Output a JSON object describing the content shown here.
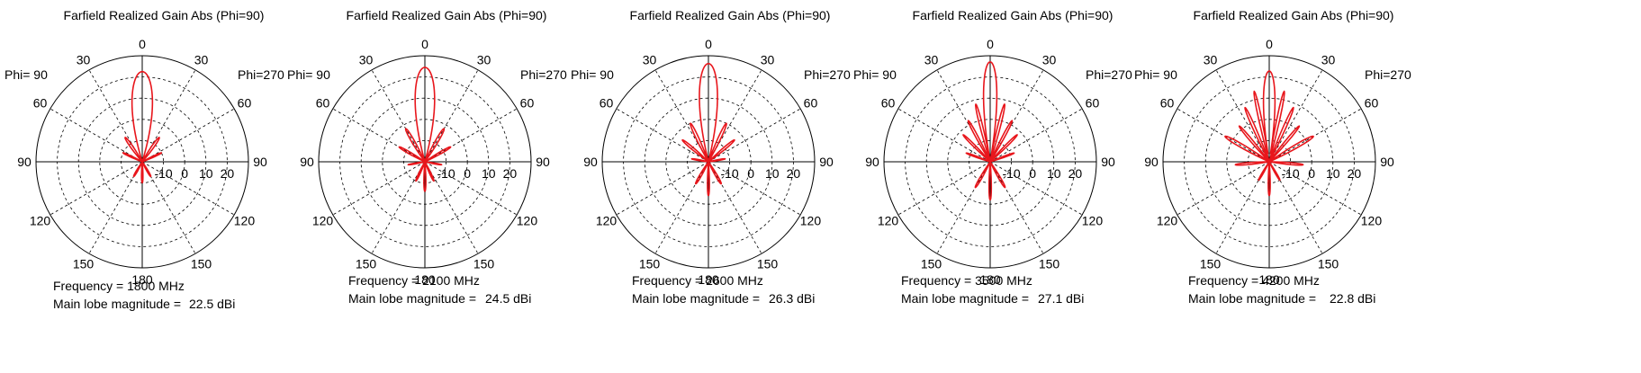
{
  "chart_data": [
    {
      "type": "polar",
      "title": "Farfield Realized Gain Abs (Phi=90)",
      "phi_left": "Phi= 90",
      "phi_right": "Phi=270",
      "angle_labels": [
        "0",
        "30",
        "60",
        "90",
        "120",
        "150",
        "180",
        "150",
        "120",
        "90",
        "60",
        "30"
      ],
      "radial_ticks": [
        "-10",
        "0",
        "10",
        "20"
      ],
      "radial_range": [
        -20,
        30
      ],
      "frequency_label": "Frequency = 1800 MHz",
      "main_lobe_label": "Main lobe magnitude =",
      "main_lobe_value": "22.5 dBi",
      "main_lobe_dbi": 22.5,
      "series_color": "#e8161c",
      "pattern": {
        "beamwidth": 9,
        "sidelobes": [
          [
            35,
            -6,
            12
          ],
          [
            -35,
            -6,
            12
          ],
          [
            65,
            -10,
            10
          ],
          [
            -65,
            -10,
            10
          ],
          [
            150,
            -12,
            15
          ],
          [
            -150,
            -12,
            15
          ],
          [
            180,
            -10,
            12
          ]
        ]
      }
    },
    {
      "type": "polar",
      "title": "Farfield Realized Gain Abs (Phi=90)",
      "phi_left": "Phi= 90",
      "phi_right": "Phi=270",
      "angle_labels": [
        "0",
        "30",
        "60",
        "90",
        "120",
        "150",
        "180",
        "150",
        "120",
        "90",
        "60",
        "30"
      ],
      "radial_ticks": [
        "-10",
        "0",
        "10",
        "20"
      ],
      "radial_range": [
        -20,
        30
      ],
      "frequency_label": "Frequency = 2100 MHz",
      "main_lobe_label": "Main lobe magnitude =",
      "main_lobe_value": "24.5 dBi",
      "main_lobe_dbi": 24.5,
      "series_color": "#e8161c",
      "pattern": {
        "beamwidth": 8,
        "sidelobes": [
          [
            30,
            -2,
            10
          ],
          [
            -30,
            -2,
            10
          ],
          [
            60,
            -6,
            10
          ],
          [
            -60,
            -6,
            10
          ],
          [
            100,
            -12,
            10
          ],
          [
            -100,
            -12,
            10
          ],
          [
            155,
            -10,
            12
          ],
          [
            -155,
            -10,
            12
          ],
          [
            180,
            -6,
            10
          ]
        ]
      }
    },
    {
      "type": "polar",
      "title": "Farfield Realized Gain Abs (Phi=90)",
      "phi_left": "Phi= 90",
      "phi_right": "Phi=270",
      "angle_labels": [
        "0",
        "30",
        "60",
        "90",
        "120",
        "150",
        "180",
        "150",
        "120",
        "90",
        "60",
        "30"
      ],
      "radial_ticks": [
        "-10",
        "0",
        "10",
        "20"
      ],
      "radial_range": [
        -20,
        30
      ],
      "frequency_label": "Frequency = 2600 MHz",
      "main_lobe_label": "Main lobe magnitude =",
      "main_lobe_value": "26.3 dBi",
      "main_lobe_dbi": 26.3,
      "series_color": "#e8161c",
      "pattern": {
        "beamwidth": 7,
        "sidelobes": [
          [
            25,
            0,
            8
          ],
          [
            -25,
            0,
            8
          ],
          [
            50,
            -4,
            9
          ],
          [
            -50,
            -4,
            9
          ],
          [
            80,
            -12,
            10
          ],
          [
            -80,
            -12,
            10
          ],
          [
            150,
            -8,
            12
          ],
          [
            -150,
            -8,
            12
          ],
          [
            180,
            -4,
            8
          ]
        ]
      }
    },
    {
      "type": "polar",
      "title": "Farfield Realized Gain Abs (Phi=90)",
      "phi_left": "Phi= 90",
      "phi_right": "Phi=270",
      "angle_labels": [
        "0",
        "30",
        "60",
        "90",
        "120",
        "150",
        "180",
        "150",
        "120",
        "90",
        "60",
        "30"
      ],
      "radial_ticks": [
        "-10",
        "0",
        "10",
        "20"
      ],
      "radial_range": [
        -20,
        30
      ],
      "frequency_label": "Frequency = 3500 MHz",
      "main_lobe_label": "Main lobe magnitude =",
      "main_lobe_value": "27.1 dBi",
      "main_lobe_dbi": 27.1,
      "series_color": "#e8161c",
      "pattern": {
        "beamwidth": 5,
        "sidelobes": [
          [
            14,
            8,
            5
          ],
          [
            -14,
            8,
            5
          ],
          [
            28,
            2,
            6
          ],
          [
            -28,
            2,
            6
          ],
          [
            45,
            -2,
            7
          ],
          [
            -45,
            -2,
            7
          ],
          [
            70,
            -8,
            8
          ],
          [
            -70,
            -8,
            8
          ],
          [
            150,
            -6,
            10
          ],
          [
            -150,
            -6,
            10
          ],
          [
            180,
            -2,
            8
          ]
        ]
      }
    },
    {
      "type": "polar",
      "title": "Farfield Realized Gain Abs (Phi=90)",
      "phi_left": "Phi= 90",
      "phi_right": "Phi=270",
      "angle_labels": [
        "0",
        "30",
        "60",
        "90",
        "120",
        "150",
        "180",
        "150",
        "120",
        "90",
        "60",
        "30"
      ],
      "radial_ticks": [
        "-10",
        "0",
        "10",
        "20"
      ],
      "radial_range": [
        -20,
        30
      ],
      "frequency_label": "Frequency = 4200 MHz",
      "main_lobe_label": "Main lobe magnitude =",
      "main_lobe_value": "22.8 dBi",
      "main_lobe_dbi": 22.8,
      "series_color": "#e8161c",
      "pattern": {
        "beamwidth": 5,
        "sidelobes": [
          [
            12,
            14,
            4
          ],
          [
            -12,
            14,
            4
          ],
          [
            24,
            8,
            5
          ],
          [
            -24,
            8,
            5
          ],
          [
            40,
            2,
            6
          ],
          [
            -40,
            2,
            6
          ],
          [
            60,
            4,
            8
          ],
          [
            -60,
            4,
            8
          ],
          [
            95,
            -4,
            8
          ],
          [
            -95,
            -4,
            8
          ],
          [
            150,
            -10,
            10
          ],
          [
            -150,
            -10,
            10
          ],
          [
            180,
            -4,
            8
          ]
        ]
      }
    }
  ]
}
